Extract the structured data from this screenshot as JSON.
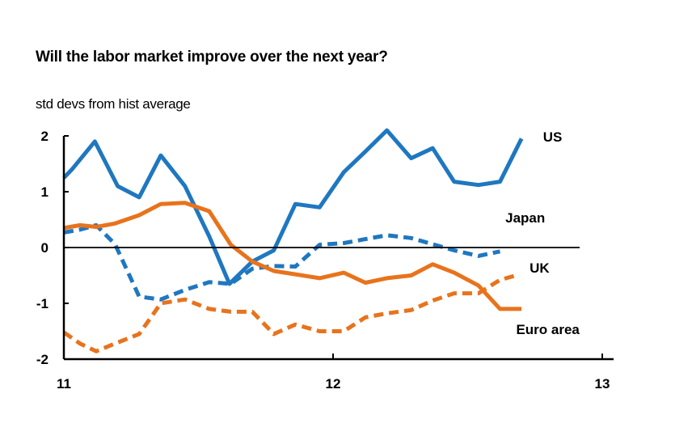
{
  "chart_data": {
    "type": "line",
    "title": "Will the labor market improve over the next year?",
    "subtitle": "std devs from hist average",
    "xlabel": "",
    "ylabel": "",
    "xlim": [
      11,
      13
    ],
    "ylim": [
      -2,
      2
    ],
    "x_ticks": [
      "11",
      "12",
      "13"
    ],
    "y_ticks": [
      "2",
      "1",
      "0",
      "-1",
      "-2"
    ],
    "grid": false,
    "zero_line": true,
    "series": [
      {
        "name": "US",
        "style": "solid",
        "color": "#1f77c0",
        "x": [
          11.0,
          11.03,
          11.115,
          11.2,
          11.28,
          11.36,
          11.45,
          11.54,
          11.615,
          11.7,
          11.78,
          11.86,
          11.95,
          12.04,
          12.12,
          12.2,
          12.29,
          12.37,
          12.45,
          12.54,
          12.62,
          12.7
        ],
        "y": [
          1.25,
          1.4,
          1.9,
          1.1,
          0.9,
          1.65,
          1.1,
          0.2,
          -0.65,
          -0.25,
          -0.05,
          0.78,
          0.72,
          1.35,
          1.72,
          2.1,
          1.6,
          1.78,
          1.18,
          1.12,
          1.18,
          1.95
        ]
      },
      {
        "name": "Japan",
        "style": "dashed",
        "color": "#1f77c0",
        "x": [
          11.0,
          11.06,
          11.12,
          11.19,
          11.28,
          11.36,
          11.45,
          11.54,
          11.62,
          11.7,
          11.78,
          11.86,
          11.95,
          12.04,
          12.12,
          12.2,
          12.29,
          12.37,
          12.45,
          12.54,
          12.62
        ],
        "y": [
          0.27,
          0.32,
          0.4,
          0.06,
          -0.88,
          -0.93,
          -0.76,
          -0.62,
          -0.65,
          -0.38,
          -0.33,
          -0.34,
          0.05,
          0.08,
          0.15,
          0.22,
          0.17,
          0.06,
          -0.05,
          -0.15,
          -0.07
        ]
      },
      {
        "name": "UK",
        "style": "dashed",
        "color": "#e8731c",
        "x": [
          11.0,
          11.06,
          11.12,
          11.19,
          11.28,
          11.36,
          11.45,
          11.54,
          11.62,
          11.7,
          11.78,
          11.86,
          11.95,
          12.04,
          12.12,
          12.2,
          12.29,
          12.37,
          12.45,
          12.54,
          12.62,
          12.68
        ],
        "y": [
          -1.52,
          -1.72,
          -1.86,
          -1.72,
          -1.55,
          -1.0,
          -0.93,
          -1.1,
          -1.15,
          -1.15,
          -1.55,
          -1.38,
          -1.5,
          -1.5,
          -1.25,
          -1.18,
          -1.12,
          -0.95,
          -0.82,
          -0.82,
          -0.58,
          -0.5
        ]
      },
      {
        "name": "Euro area",
        "style": "solid",
        "color": "#e8731c",
        "x": [
          11.0,
          11.06,
          11.12,
          11.19,
          11.28,
          11.36,
          11.45,
          11.54,
          11.62,
          11.7,
          11.78,
          11.86,
          11.95,
          12.04,
          12.12,
          12.2,
          12.29,
          12.37,
          12.45,
          12.54,
          12.62,
          12.7
        ],
        "y": [
          0.35,
          0.4,
          0.37,
          0.43,
          0.58,
          0.78,
          0.8,
          0.65,
          0.05,
          -0.25,
          -0.42,
          -0.48,
          -0.55,
          -0.45,
          -0.63,
          -0.55,
          -0.5,
          -0.3,
          -0.45,
          -0.68,
          -1.1,
          -1.1
        ]
      }
    ],
    "annotations": [
      {
        "text": "US",
        "x": 12.78,
        "y": 1.9
      },
      {
        "text": "Japan",
        "x": 12.64,
        "y": 0.45
      },
      {
        "text": "UK",
        "x": 12.73,
        "y": -0.45
      },
      {
        "text": "Euro area",
        "x": 12.68,
        "y": -1.55
      }
    ]
  }
}
